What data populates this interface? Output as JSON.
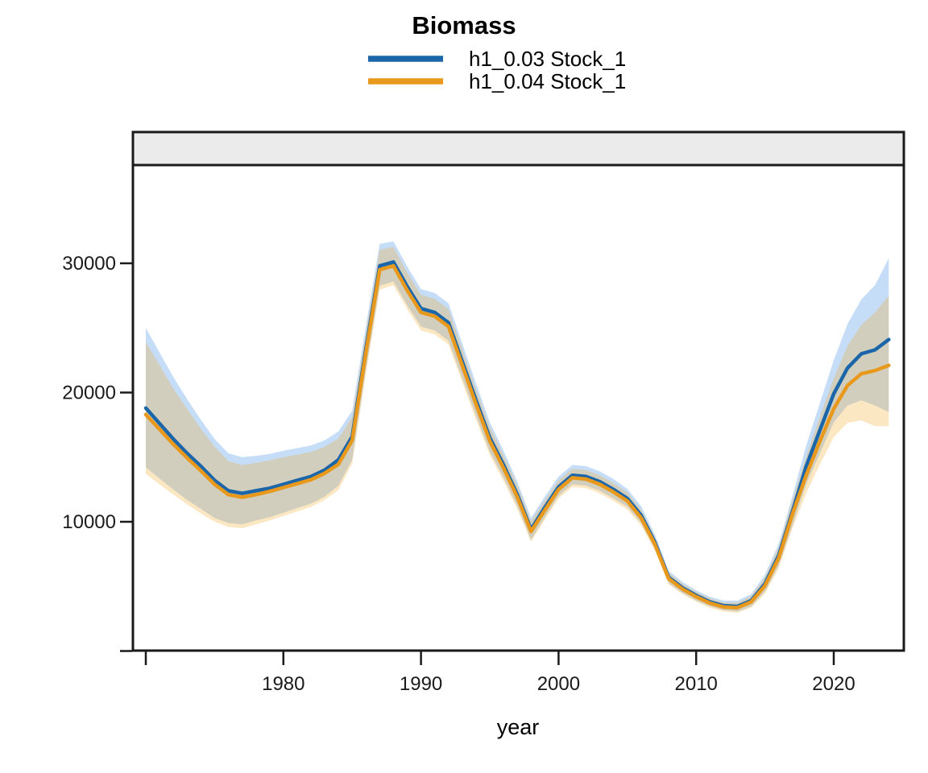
{
  "chart_data": {
    "type": "line",
    "title": "Biomass",
    "xlabel": "year",
    "ylabel": "",
    "grid": false,
    "legend_position": "top-center",
    "facet_strip_label": "",
    "xlim": [
      1969,
      2025
    ],
    "ylim": [
      0,
      37500
    ],
    "x_ticks": {
      "labeled": [
        1980,
        1990,
        2000,
        2010,
        2020
      ],
      "unlabeled": [
        1970
      ]
    },
    "y_ticks": {
      "labeled": [
        10000,
        20000,
        30000
      ],
      "unlabeled": [
        0
      ]
    },
    "style": {
      "strip_fill": "#ebebeb",
      "border_color": "#1a1a1a",
      "background": "#ffffff"
    },
    "x": [
      1970,
      1971,
      1972,
      1973,
      1974,
      1975,
      1976,
      1977,
      1978,
      1979,
      1980,
      1981,
      1982,
      1983,
      1984,
      1985,
      1986,
      1987,
      1988,
      1989,
      1990,
      1991,
      1992,
      1993,
      1994,
      1995,
      1996,
      1997,
      1998,
      1999,
      2000,
      2001,
      2002,
      2003,
      2004,
      2005,
      2006,
      2007,
      2008,
      2009,
      2010,
      2011,
      2012,
      2013,
      2014,
      2015,
      2016,
      2017,
      2018,
      2019,
      2020,
      2021,
      2022,
      2023,
      2024
    ],
    "series": [
      {
        "name": "h1_0.03 Stock_1",
        "color": "#1B66A9",
        "ribbon_color": "#4F94E8",
        "ribbon_opacity": 0.32,
        "values": [
          18800,
          17600,
          16400,
          15300,
          14300,
          13200,
          12400,
          12200,
          12400,
          12600,
          12900,
          13200,
          13500,
          14000,
          14800,
          16600,
          23400,
          29800,
          30100,
          28200,
          26500,
          26200,
          25400,
          22400,
          19400,
          16500,
          14400,
          12100,
          9400,
          11100,
          12700,
          13600,
          13500,
          13100,
          12500,
          11800,
          10500,
          8400,
          5700,
          4900,
          4300,
          3800,
          3500,
          3450,
          3900,
          5200,
          7400,
          10800,
          14300,
          17100,
          19900,
          21900,
          23000,
          23300,
          24100
        ],
        "lower": [
          14200,
          13350,
          12500,
          11700,
          11000,
          10300,
          9900,
          9800,
          10100,
          10350,
          10700,
          11050,
          11400,
          11950,
          12800,
          14800,
          21800,
          28250,
          28600,
          26750,
          25100,
          24800,
          24000,
          21100,
          18200,
          15400,
          13400,
          11200,
          8600,
          10350,
          12000,
          12900,
          12800,
          12400,
          11800,
          11150,
          9900,
          7900,
          5250,
          4500,
          3900,
          3450,
          3150,
          3060,
          3450,
          4600,
          6600,
          9700,
          12900,
          15300,
          17700,
          19000,
          19400,
          19000,
          18500
        ],
        "upper": [
          25000,
          23100,
          21200,
          19500,
          17900,
          16400,
          15300,
          15000,
          15100,
          15250,
          15500,
          15700,
          15900,
          16300,
          17000,
          18600,
          25200,
          31500,
          31700,
          29750,
          28000,
          27700,
          26900,
          23800,
          20700,
          17700,
          15500,
          13100,
          10300,
          11950,
          13500,
          14400,
          14300,
          13900,
          13300,
          12550,
          11200,
          9000,
          6200,
          5350,
          4700,
          4200,
          3900,
          3900,
          4400,
          5900,
          8300,
          12000,
          15900,
          19200,
          22500,
          25300,
          27200,
          28300,
          30400
        ]
      },
      {
        "name": "h1_0.04 Stock_1",
        "color": "#E8991C",
        "ribbon_color": "#F5A623",
        "ribbon_opacity": 0.27,
        "values": [
          18300,
          17150,
          16000,
          14950,
          13950,
          12900,
          12100,
          11900,
          12100,
          12350,
          12650,
          12950,
          13250,
          13750,
          14450,
          16300,
          23100,
          29500,
          29800,
          27900,
          26200,
          25900,
          25100,
          22100,
          19100,
          16250,
          14150,
          11900,
          9250,
          10900,
          12500,
          13400,
          13300,
          12900,
          12300,
          11600,
          10300,
          8250,
          5600,
          4800,
          4200,
          3700,
          3400,
          3350,
          3800,
          5050,
          7200,
          10600,
          13600,
          16250,
          18750,
          20550,
          21450,
          21700,
          22100
        ],
        "lower": [
          13700,
          12900,
          12100,
          11350,
          10650,
          10000,
          9600,
          9500,
          9800,
          10100,
          10450,
          10800,
          11150,
          11700,
          12450,
          14500,
          21500,
          27950,
          28300,
          26450,
          24800,
          24500,
          23700,
          20800,
          17900,
          15150,
          13150,
          11000,
          8450,
          10150,
          11800,
          12700,
          12600,
          12200,
          11600,
          10950,
          9700,
          7750,
          5150,
          4400,
          3820,
          3340,
          3050,
          2960,
          3350,
          4450,
          6400,
          9500,
          12200,
          14450,
          16550,
          17650,
          17850,
          17400,
          17400
        ],
        "upper": [
          23900,
          22100,
          20300,
          18750,
          17200,
          15800,
          14700,
          14400,
          14550,
          14750,
          15000,
          15200,
          15400,
          15800,
          16450,
          18100,
          24700,
          31050,
          31250,
          29300,
          27550,
          27250,
          26450,
          23350,
          20250,
          17350,
          15150,
          12800,
          10050,
          11650,
          13200,
          14100,
          14000,
          13600,
          13000,
          12280,
          10930,
          8790,
          6050,
          5200,
          4560,
          4060,
          3760,
          3750,
          4250,
          5680,
          8010,
          11680,
          15040,
          18140,
          21090,
          23610,
          25230,
          26200,
          27500
        ]
      }
    ]
  }
}
